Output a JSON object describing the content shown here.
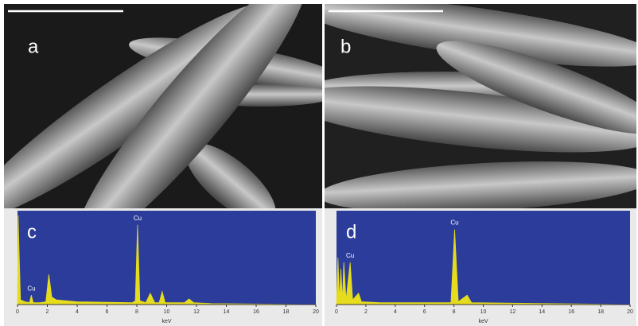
{
  "images": [
    {
      "label": "a"
    },
    {
      "label": "b"
    }
  ],
  "chart_data": [
    {
      "type": "area",
      "title": "c",
      "xlabel": "keV",
      "color": "#e6dc1e",
      "background": "#2b3c9a",
      "xlim": [
        0,
        20
      ],
      "ylim": [
        0,
        100
      ],
      "xticks": [
        0,
        2,
        4,
        6,
        8,
        10,
        12,
        14,
        16,
        18,
        20
      ],
      "x": [
        0,
        0.05,
        0.1,
        0.2,
        0.5,
        0.8,
        0.93,
        1.05,
        1.5,
        1.9,
        2.1,
        2.3,
        2.6,
        4,
        7.7,
        7.9,
        8.05,
        8.2,
        8.6,
        8.9,
        9.2,
        9.5,
        9.7,
        9.9,
        11.2,
        11.5,
        11.8,
        13,
        20
      ],
      "values": [
        0,
        95,
        60,
        5,
        3,
        2,
        10,
        2,
        2,
        3,
        32,
        8,
        5,
        3,
        2,
        4,
        85,
        4,
        2,
        12,
        2,
        2,
        14,
        2,
        2,
        6,
        2,
        1,
        0
      ],
      "annotations": [
        {
          "text": "Cu",
          "x": 0.93
        },
        {
          "text": "Cu",
          "x": 8.05
        }
      ]
    },
    {
      "type": "area",
      "title": "d",
      "xlabel": "keV",
      "color": "#e6dc1e",
      "background": "#2b3c9a",
      "xlim": [
        0,
        20
      ],
      "ylim": [
        0,
        100
      ],
      "xticks": [
        0,
        2,
        4,
        6,
        8,
        10,
        12,
        14,
        16,
        18,
        20
      ],
      "x": [
        0,
        0.1,
        0.2,
        0.3,
        0.4,
        0.5,
        0.65,
        0.93,
        1.1,
        1.5,
        1.7,
        3,
        7.8,
        8.05,
        8.3,
        8.9,
        9.2,
        20
      ],
      "values": [
        0,
        50,
        5,
        38,
        5,
        45,
        5,
        45,
        5,
        12,
        3,
        2,
        2,
        80,
        3,
        10,
        2,
        0
      ],
      "annotations": [
        {
          "text": "Cu",
          "x": 0.93
        },
        {
          "text": "Cu",
          "x": 8.05
        }
      ]
    }
  ]
}
